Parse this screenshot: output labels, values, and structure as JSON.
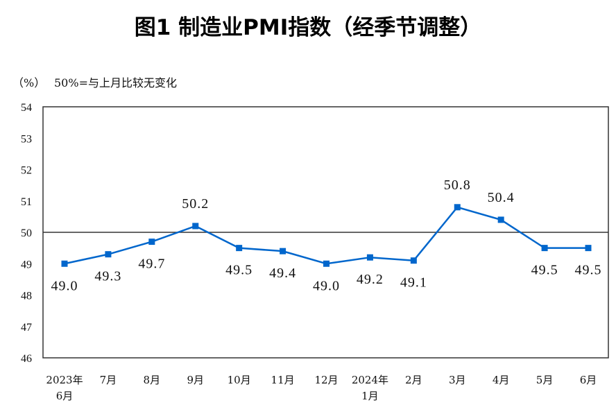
{
  "chart_data": {
    "type": "line",
    "title": "图1  制造业PMI指数（经季节调整）",
    "ylabel": "（%）",
    "annotation": "50%=与上月比较无变化",
    "categories": [
      [
        "2023年",
        "6月"
      ],
      [
        "7月"
      ],
      [
        "8月"
      ],
      [
        "9月"
      ],
      [
        "10月"
      ],
      [
        "11月"
      ],
      [
        "12月"
      ],
      [
        "2024年",
        "1月"
      ],
      [
        "2月"
      ],
      [
        "3月"
      ],
      [
        "4月"
      ],
      [
        "5月"
      ],
      [
        "6月"
      ]
    ],
    "values": [
      49.0,
      49.3,
      49.7,
      50.2,
      49.5,
      49.4,
      49.0,
      49.2,
      49.1,
      50.8,
      50.4,
      49.5,
      49.5
    ],
    "data_labels": [
      "49.0",
      "49.3",
      "49.7",
      "50.2",
      "49.5",
      "49.4",
      "49.0",
      "49.2",
      "49.1",
      "50.8",
      "50.4",
      "49.5",
      "49.5"
    ],
    "label_above": [
      false,
      false,
      false,
      true,
      false,
      false,
      false,
      false,
      false,
      true,
      true,
      false,
      false
    ],
    "ylim": [
      46,
      54
    ],
    "yticks": [
      "46",
      "47",
      "48",
      "49",
      "50",
      "51",
      "52",
      "53",
      "54"
    ],
    "reference_line": 50,
    "grid": false,
    "line_color": "#0066CC",
    "marker": "square"
  }
}
